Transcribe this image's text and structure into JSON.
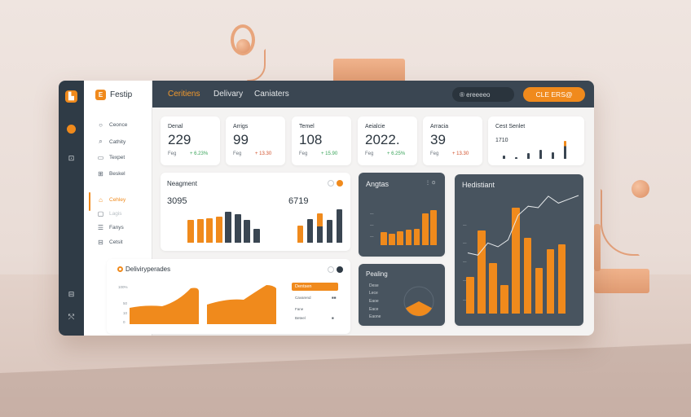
{
  "app": {
    "brand": "Festip",
    "brand_logo": "E"
  },
  "colors": {
    "accent": "#f08a1c",
    "dark_panel": "#48545f",
    "bar_dark": "#3a4652"
  },
  "rail_icons": [
    "app-logo-icon",
    "coin-icon",
    "camera-icon",
    "chat-icon",
    "share-icon"
  ],
  "sidebar": {
    "items": [
      {
        "icon": "○",
        "label": "Ceonce"
      },
      {
        "icon": "⌕",
        "label": "Cathity"
      },
      {
        "icon": "▭",
        "label": "Texpet"
      },
      {
        "icon": "⊞",
        "label": "Beskel"
      },
      {
        "icon": "⌂",
        "label": "Cehley"
      },
      {
        "icon": "▢",
        "label": "Lagis"
      },
      {
        "icon": "☰",
        "label": "Fanys"
      },
      {
        "icon": "⊟",
        "label": "Cetsit"
      }
    ]
  },
  "topbar": {
    "tabs": [
      "Ceritiens",
      "Delivary",
      "Caniaters"
    ],
    "search_label": "® ereeeeo",
    "cta_label": "CLE ERS@"
  },
  "kpis": [
    {
      "label": "Denal",
      "value": "229",
      "sub": "Feg",
      "delta": "+ 6.23%",
      "dir": "up"
    },
    {
      "label": "Arrigs",
      "value": "99",
      "sub": "Feg",
      "delta": "+ 13.30",
      "dir": "down"
    },
    {
      "label": "Temel",
      "value": "108",
      "sub": "Feg",
      "delta": "+ 15.90",
      "dir": "up"
    },
    {
      "label": "Aeialcie",
      "value": "2022.",
      "sub": "Feg",
      "delta": "+ 6.25%",
      "dir": "up"
    },
    {
      "label": "Arracia",
      "value": "39",
      "sub": "Feg",
      "delta": "+ 13.30",
      "dir": "down"
    }
  ],
  "mini_chart": {
    "title": "Cest Senlet",
    "value": "1710",
    "bars": [
      0.15,
      0.1,
      0.3,
      0.45,
      0.35,
      0.9
    ]
  },
  "segment_card": {
    "title": "Neagment",
    "left_value": "3095",
    "right_value": "6719",
    "left_bars": [
      {
        "v": 0.6,
        "c": "orange"
      },
      {
        "v": 0.62,
        "c": "orange"
      },
      {
        "v": 0.65,
        "c": "orange"
      },
      {
        "v": 0.7,
        "c": "orange"
      },
      {
        "v": 0.82,
        "c": "dark"
      },
      {
        "v": 0.76,
        "c": "dark"
      },
      {
        "v": 0.6,
        "c": "dark"
      },
      {
        "v": 0.38,
        "c": "dark"
      }
    ],
    "right_bars": [
      {
        "v": 0.45,
        "c": "orange"
      },
      {
        "v": 0.62,
        "c": "dark"
      },
      {
        "v": 0.78,
        "c": "orange",
        "split": 0.55
      },
      {
        "v": 0.6,
        "c": "dark"
      },
      {
        "v": 0.9,
        "c": "dark"
      }
    ],
    "y_ticks": [
      "—",
      "—",
      "—",
      "—",
      "—"
    ]
  },
  "delivery_card": {
    "title": "Deliviryperades",
    "y_ticks": [
      "100%",
      "50",
      "10",
      "0"
    ],
    "table_head": "Dentsen",
    "table_rows": [
      {
        "label": "Cavarend",
        "value": "■■"
      },
      {
        "label": "Fane",
        "value": ""
      },
      {
        "label": "Beteel",
        "value": "■"
      }
    ]
  },
  "angles_card": {
    "title": "Angtas",
    "menu": "⋮ ⊙",
    "bars": [
      0.3,
      0.26,
      0.33,
      0.35,
      0.38,
      0.73,
      0.82
    ]
  },
  "pending_card": {
    "title": "Pealing",
    "legend": [
      "Dese",
      "Lece",
      "Eaoe",
      "Eace",
      "Eaone"
    ],
    "donut_value": 0.35
  },
  "trend_card": {
    "title": "Hedistiant",
    "bars": [
      0.32,
      0.72,
      0.44,
      0.25,
      0.92,
      0.66,
      0.4,
      0.56,
      0.6
    ],
    "line": [
      0.25,
      0.22,
      0.38,
      0.33,
      0.42,
      0.74,
      0.86,
      0.84,
      0.99,
      0.9,
      0.95,
      1.0
    ]
  }
}
